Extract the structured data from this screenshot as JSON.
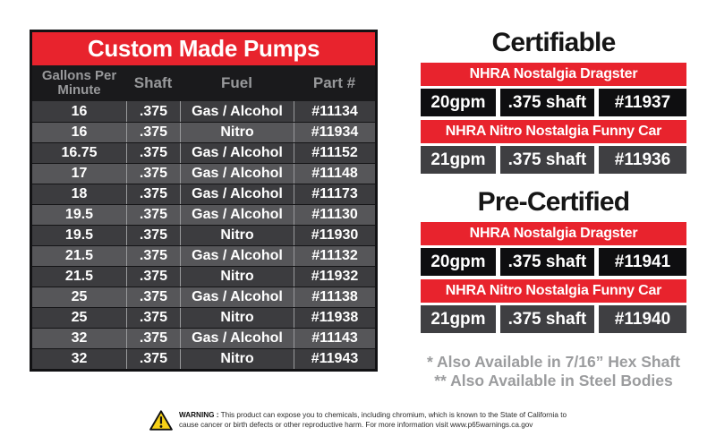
{
  "colors": {
    "accent_red": "#e8232d",
    "table_border_black": "#121214",
    "row_dark_gray": "#3c3c3f",
    "row_light_gray": "#565659",
    "spec_row_black": "#0e0e10",
    "spec_row_gray": "#3f3f42",
    "header_text_gray": "#98999b",
    "footnote_gray": "#9b9c9e",
    "warning_triangle_yellow": "#f7d117"
  },
  "pump_table": {
    "title": "Custom Made Pumps",
    "headers": [
      "Gallons Per Minute",
      "Shaft",
      "Fuel",
      "Part #"
    ],
    "rows": [
      [
        "16",
        ".375",
        "Gas / Alcohol",
        "#11134"
      ],
      [
        "16",
        ".375",
        "Nitro",
        "#11934"
      ],
      [
        "16.75",
        ".375",
        "Gas / Alcohol",
        "#11152"
      ],
      [
        "17",
        ".375",
        "Gas / Alcohol",
        "#11148"
      ],
      [
        "18",
        ".375",
        "Gas / Alcohol",
        "#11173"
      ],
      [
        "19.5",
        ".375",
        "Gas / Alcohol",
        "#11130"
      ],
      [
        "19.5",
        ".375",
        "Nitro",
        "#11930"
      ],
      [
        "21.5",
        ".375",
        "Gas / Alcohol",
        "#11132"
      ],
      [
        "21.5",
        ".375",
        "Nitro",
        "#11932"
      ],
      [
        "25",
        ".375",
        "Gas / Alcohol",
        "#11138"
      ],
      [
        "25",
        ".375",
        "Nitro",
        "#11938"
      ],
      [
        "32",
        ".375",
        "Gas / Alcohol",
        "#11143"
      ],
      [
        "32",
        ".375",
        "Nitro",
        "#11943"
      ]
    ]
  },
  "sections": [
    {
      "heading": "Certifiable",
      "entries": [
        {
          "label": "NHRA Nostalgia Dragster",
          "specs": [
            "20gpm",
            ".375 shaft",
            "#11937"
          ]
        },
        {
          "label": "NHRA Nitro Nostalgia Funny Car",
          "specs": [
            "21gpm",
            ".375 shaft",
            "#11936"
          ]
        }
      ]
    },
    {
      "heading": "Pre-Certified",
      "entries": [
        {
          "label": "NHRA Nostalgia Dragster",
          "specs": [
            "20gpm",
            ".375 shaft",
            "#11941"
          ]
        },
        {
          "label": "NHRA Nitro Nostalgia Funny Car",
          "specs": [
            "21gpm",
            ".375 shaft",
            "#11940"
          ]
        }
      ]
    }
  ],
  "footnotes": [
    "* Also Available in 7/16” Hex Shaft",
    "** Also Available in Steel Bodies"
  ],
  "warning": {
    "icon": "warning-triangle-icon",
    "label": "WARNING :",
    "line1": "This product can expose you to chemicals, including chromium, which is known to the State of California to",
    "line2": "cause cancer or birth defects or other reproductive harm. For more information visit www.p65warnings.ca.gov"
  }
}
